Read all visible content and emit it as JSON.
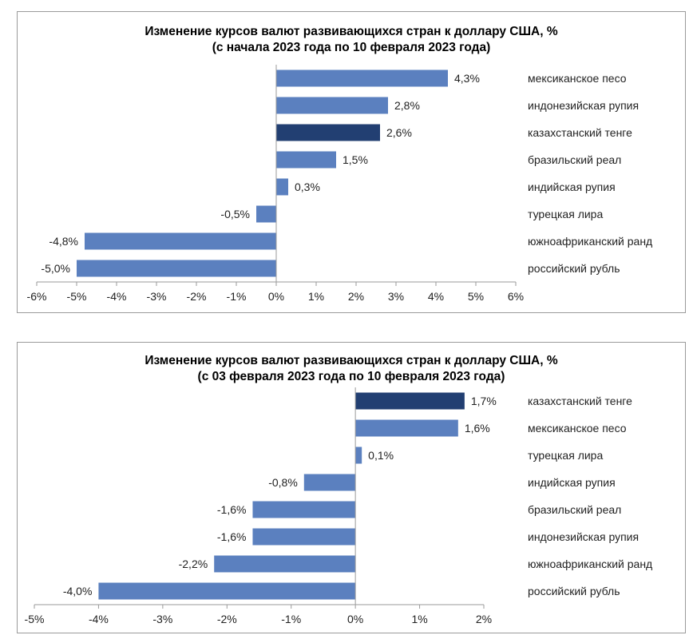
{
  "chart_data": [
    {
      "type": "bar",
      "orientation": "horizontal",
      "title": "Изменение курсов валют развивающихся стран к доллару США, %",
      "subtitle": "(с начала 2023 года по 10 февраля 2023 года)",
      "categories": [
        "мексиканское песо",
        "индонезийская рупия",
        "казахстанский тенге",
        "бразильский реал",
        "индийская рупия",
        "турецкая лира",
        "южноафриканский ранд",
        "российский рубль"
      ],
      "values": [
        4.3,
        2.8,
        2.6,
        1.5,
        0.3,
        -0.5,
        -4.8,
        -5.0
      ],
      "value_labels": [
        "4,3%",
        "2,8%",
        "2,6%",
        "1,5%",
        "0,3%",
        "-0,5%",
        "-4,8%",
        "-5,0%"
      ],
      "highlight": "казахстанский тенге",
      "xlim": [
        -6,
        6
      ],
      "ticks": [
        -6,
        -5,
        -4,
        -3,
        -2,
        -1,
        0,
        1,
        2,
        3,
        4,
        5,
        6
      ],
      "tick_labels": [
        "-6%",
        "-5%",
        "-4%",
        "-3%",
        "-2%",
        "-1%",
        "0%",
        "1%",
        "2%",
        "3%",
        "4%",
        "5%",
        "6%"
      ],
      "xlabel": "",
      "ylabel": "",
      "grid": false,
      "colors": {
        "bar": "#5b80bf",
        "highlight": "#223f72",
        "axis": "#9a9a9a"
      }
    },
    {
      "type": "bar",
      "orientation": "horizontal",
      "title": "Изменение курсов валют развивающихся стран к доллару США, %",
      "subtitle": "(с 03 февраля 2023 года по 10 февраля 2023 года)",
      "categories": [
        "казахстанский тенге",
        "мексиканское песо",
        "турецкая лира",
        "индийская рупия",
        "бразильский реал",
        "индонезийская рупия",
        "южноафриканский ранд",
        "российский рубль"
      ],
      "values": [
        1.7,
        1.6,
        0.1,
        -0.8,
        -1.6,
        -1.6,
        -2.2,
        -4.0
      ],
      "value_labels": [
        "1,7%",
        "1,6%",
        "0,1%",
        "-0,8%",
        "-1,6%",
        "-1,6%",
        "-2,2%",
        "-4,0%"
      ],
      "highlight": "казахстанский тенге",
      "xlim": [
        -5,
        2
      ],
      "ticks": [
        -5,
        -4,
        -3,
        -2,
        -1,
        0,
        1,
        2
      ],
      "tick_labels": [
        "-5%",
        "-4%",
        "-3%",
        "-2%",
        "-1%",
        "0%",
        "1%",
        "2%"
      ],
      "xlabel": "",
      "ylabel": "",
      "grid": false,
      "colors": {
        "bar": "#5b80bf",
        "highlight": "#223f72",
        "axis": "#9a9a9a"
      }
    }
  ]
}
